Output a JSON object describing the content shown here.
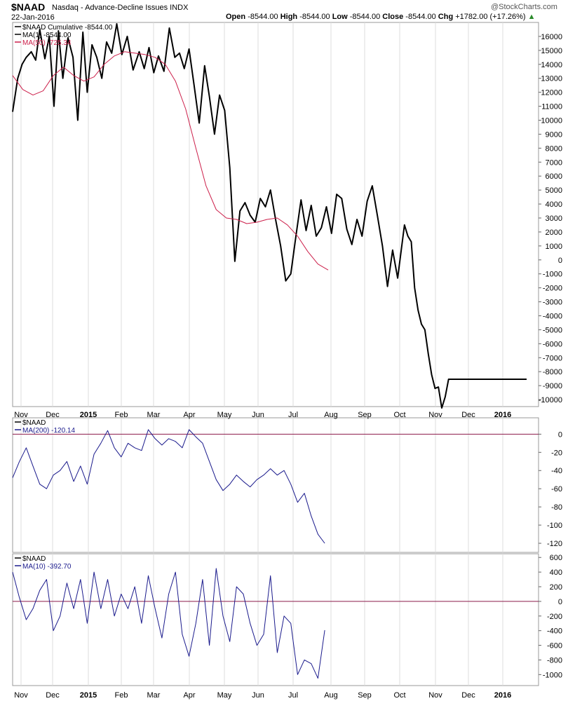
{
  "header": {
    "symbol": "$NAAD",
    "description": "Nasdaq - Advance-Decline Issues",
    "exchange": "INDX",
    "date": "22-Jan-2016",
    "open_label": "Open",
    "open": "-8544.00",
    "high_label": "High",
    "high": "-8544.00",
    "low_label": "Low",
    "low": "-8544.00",
    "close_label": "Close",
    "close": "-8544.00",
    "chg_label": "Chg",
    "chg": "+1782.00 (+17.26%)",
    "brand": "@StockCharts.com"
  },
  "colors": {
    "price": "#000000",
    "ma50": "#cc1f4a",
    "indicator": "#1a1a8c",
    "zero_line": "#8b1a4a",
    "grid": "#dddddd",
    "frame": "#999999"
  },
  "x_axis": {
    "months": [
      {
        "label": "Nov",
        "bold": false
      },
      {
        "label": "Dec",
        "bold": false
      },
      {
        "label": "2015",
        "bold": true
      },
      {
        "label": "Feb",
        "bold": false
      },
      {
        "label": "Mar",
        "bold": false
      },
      {
        "label": "Apr",
        "bold": false
      },
      {
        "label": "May",
        "bold": false
      },
      {
        "label": "Jun",
        "bold": false
      },
      {
        "label": "Jul",
        "bold": false
      },
      {
        "label": "Aug",
        "bold": false
      },
      {
        "label": "Sep",
        "bold": false
      },
      {
        "label": "Oct",
        "bold": false
      },
      {
        "label": "Nov",
        "bold": false
      },
      {
        "label": "Dec",
        "bold": false
      },
      {
        "label": "2016",
        "bold": true
      }
    ]
  },
  "chart_data": [
    {
      "type": "line",
      "panel": "main",
      "legend": [
        {
          "text": "$NAAD Cumulative -8544.00",
          "color": "#000000"
        },
        {
          "text": "MA(1) -8544.00",
          "color": "#000000"
        },
        {
          "text": "MA(50) -725.34",
          "color": "#cc1f4a"
        }
      ],
      "ylim": [
        -10500,
        17000
      ],
      "yticks": [
        16000,
        15000,
        14000,
        13000,
        12000,
        11000,
        10000,
        9000,
        8000,
        7000,
        6000,
        5000,
        4000,
        3000,
        2000,
        1000,
        0,
        -1000,
        -2000,
        -3000,
        -4000,
        -5000,
        -6000,
        -7000,
        -8000,
        -9000,
        -10000
      ],
      "series": [
        {
          "name": "$NAAD Cumulative",
          "color": "#000000",
          "x": [
            0,
            1.5,
            2.8,
            4,
            5.5,
            6.8,
            8,
            9.5,
            10.8,
            12.2,
            13.5,
            14.8,
            16.3,
            17.8,
            19.2,
            20.7,
            22,
            23.4,
            24.8,
            26.3,
            27.7,
            29.2,
            30.7,
            32.2,
            33.8,
            35.5,
            37.3,
            38.8,
            40.2,
            41.6,
            43,
            44.6,
            46.2,
            47.8,
            49.2,
            50.6,
            52,
            53.5,
            55,
            56.6,
            58,
            59.5,
            61,
            62.5,
            64,
            65.5,
            67,
            68.5,
            70,
            71.5,
            73,
            74.5,
            76,
            77.5,
            79,
            80.5,
            82,
            83.5,
            85,
            86.5,
            88,
            89.5,
            91,
            92.5,
            94,
            95.5,
            97,
            98.5,
            100,
            101.5,
            103,
            104.5,
            106,
            107.5,
            109,
            110.5,
            112,
            113.5,
            115.5,
            116.5,
            117.5,
            118.5,
            119.5,
            120.5,
            121.5,
            122.5,
            123.5,
            124.5,
            125.5,
            126.5,
            127.5,
            128.5,
            129.5,
            130.5,
            131.5,
            132.5,
            133.5,
            134.5,
            135.5,
            136.5,
            137.5,
            138.5,
            139.5,
            140.5,
            141.5,
            142.5,
            143.5,
            144.5,
            145.5,
            146.5,
            147.5,
            148.5,
            149.5,
            150.5,
            151.5
          ],
          "y": [
            10600,
            13000,
            14000,
            14500,
            14900,
            14300,
            16500,
            14400,
            16000,
            11000,
            16400,
            13000,
            15900,
            14500,
            10000,
            16300,
            12000,
            15400,
            14500,
            13000,
            15600,
            14800,
            16900,
            14700,
            16000,
            13600,
            14900,
            13700,
            15200,
            13400,
            14600,
            13500,
            16600,
            14500,
            14800,
            13700,
            15100,
            12500,
            9800,
            13900,
            11700,
            9000,
            11800,
            10700,
            6600,
            -100,
            3500,
            4100,
            3200,
            2700,
            4400,
            3800,
            5000,
            2900,
            1000,
            -1500,
            -1000,
            1700,
            4300,
            2100,
            3900,
            1700,
            2300,
            3800,
            1900,
            4700,
            4400,
            2200,
            1100,
            2900,
            1700,
            4200,
            5300,
            3200,
            1000,
            -1900,
            700,
            -1300,
            2500,
            1700,
            1300,
            -2000,
            -3600,
            -4600,
            -5000,
            -6700,
            -8200,
            -9200,
            -9100,
            -10600,
            -9800,
            -8544,
            -8544,
            -8544,
            -8544,
            -8544,
            -8544,
            -8544,
            -8544,
            -8544,
            -8544,
            -8544,
            -8544,
            -8544,
            -8544,
            -8544,
            -8544,
            -8544,
            -8544,
            -8544,
            -8544,
            -8544,
            -8544,
            -8544,
            -8544
          ]
        },
        {
          "name": "MA(50)",
          "color": "#cc1f4a",
          "x": [
            0,
            3,
            6,
            9,
            12,
            15,
            18,
            21,
            24,
            27,
            30,
            33,
            36,
            39,
            42,
            45,
            48,
            51,
            54,
            57,
            60,
            63,
            66,
            69,
            72,
            75,
            78,
            81,
            84,
            87,
            90,
            93
          ],
          "y": [
            13200,
            12200,
            11800,
            12100,
            13200,
            13800,
            13200,
            12800,
            13100,
            14000,
            14600,
            14900,
            14800,
            14700,
            14500,
            14000,
            12800,
            10800,
            8000,
            5300,
            3600,
            3000,
            2900,
            2600,
            2700,
            2900,
            3000,
            2500,
            1700,
            600,
            -300,
            -725
          ]
        }
      ]
    },
    {
      "type": "line",
      "panel": "indicator1",
      "legend": [
        {
          "text": "$NAAD",
          "color": "#000000"
        },
        {
          "text": "MA(200) -120.14",
          "color": "#1a1a8c"
        }
      ],
      "ylim": [
        -130,
        18
      ],
      "yticks": [
        0,
        -20,
        -40,
        -60,
        -80,
        -100,
        -120
      ],
      "series": [
        {
          "name": "MA(200)",
          "color": "#1a1a8c",
          "x": [
            0,
            2,
            4,
            6,
            8,
            10,
            12,
            14,
            16,
            18,
            20,
            22,
            24,
            26,
            28,
            30,
            32,
            34,
            36,
            38,
            40,
            42,
            44,
            46,
            48,
            50,
            52,
            54,
            56,
            58,
            60,
            62,
            64,
            66,
            68,
            70,
            72,
            74,
            76,
            78,
            80,
            82,
            84,
            86,
            88,
            90,
            92
          ],
          "y": [
            -48,
            -30,
            -15,
            -35,
            -55,
            -60,
            -45,
            -40,
            -30,
            -52,
            -35,
            -55,
            -22,
            -10,
            4,
            -15,
            -25,
            -10,
            -15,
            -18,
            5,
            -5,
            -12,
            -5,
            -8,
            -15,
            5,
            -3,
            -10,
            -30,
            -50,
            -62,
            -55,
            -45,
            -52,
            -58,
            -50,
            -45,
            -38,
            -45,
            -40,
            -55,
            -75,
            -65,
            -90,
            -110,
            -120
          ]
        }
      ]
    },
    {
      "type": "line",
      "panel": "indicator2",
      "legend": [
        {
          "text": "$NAAD",
          "color": "#000000"
        },
        {
          "text": "MA(10) -392.70",
          "color": "#1a1a8c"
        }
      ],
      "ylim": [
        -1150,
        650
      ],
      "yticks": [
        600,
        400,
        200,
        0,
        -200,
        -400,
        -600,
        -800,
        -1000
      ],
      "series": [
        {
          "name": "MA(10)",
          "color": "#1a1a8c",
          "x": [
            0,
            2,
            4,
            6,
            8,
            10,
            12,
            14,
            16,
            18,
            20,
            22,
            24,
            26,
            28,
            30,
            32,
            34,
            36,
            38,
            40,
            42,
            44,
            46,
            48,
            50,
            52,
            54,
            56,
            58,
            60,
            62,
            64,
            66,
            68,
            70,
            72,
            74,
            76,
            78,
            80,
            82,
            84,
            86,
            88,
            90,
            92
          ],
          "y": [
            400,
            50,
            -250,
            -100,
            150,
            300,
            -400,
            -200,
            250,
            -100,
            300,
            -300,
            400,
            -100,
            300,
            -200,
            100,
            -100,
            200,
            -300,
            350,
            -100,
            -500,
            100,
            400,
            -450,
            -750,
            -300,
            300,
            -600,
            450,
            -200,
            -550,
            200,
            100,
            -300,
            -600,
            -450,
            350,
            -700,
            -200,
            -300,
            -1000,
            -800,
            -850,
            -1050,
            -393
          ]
        }
      ]
    }
  ]
}
